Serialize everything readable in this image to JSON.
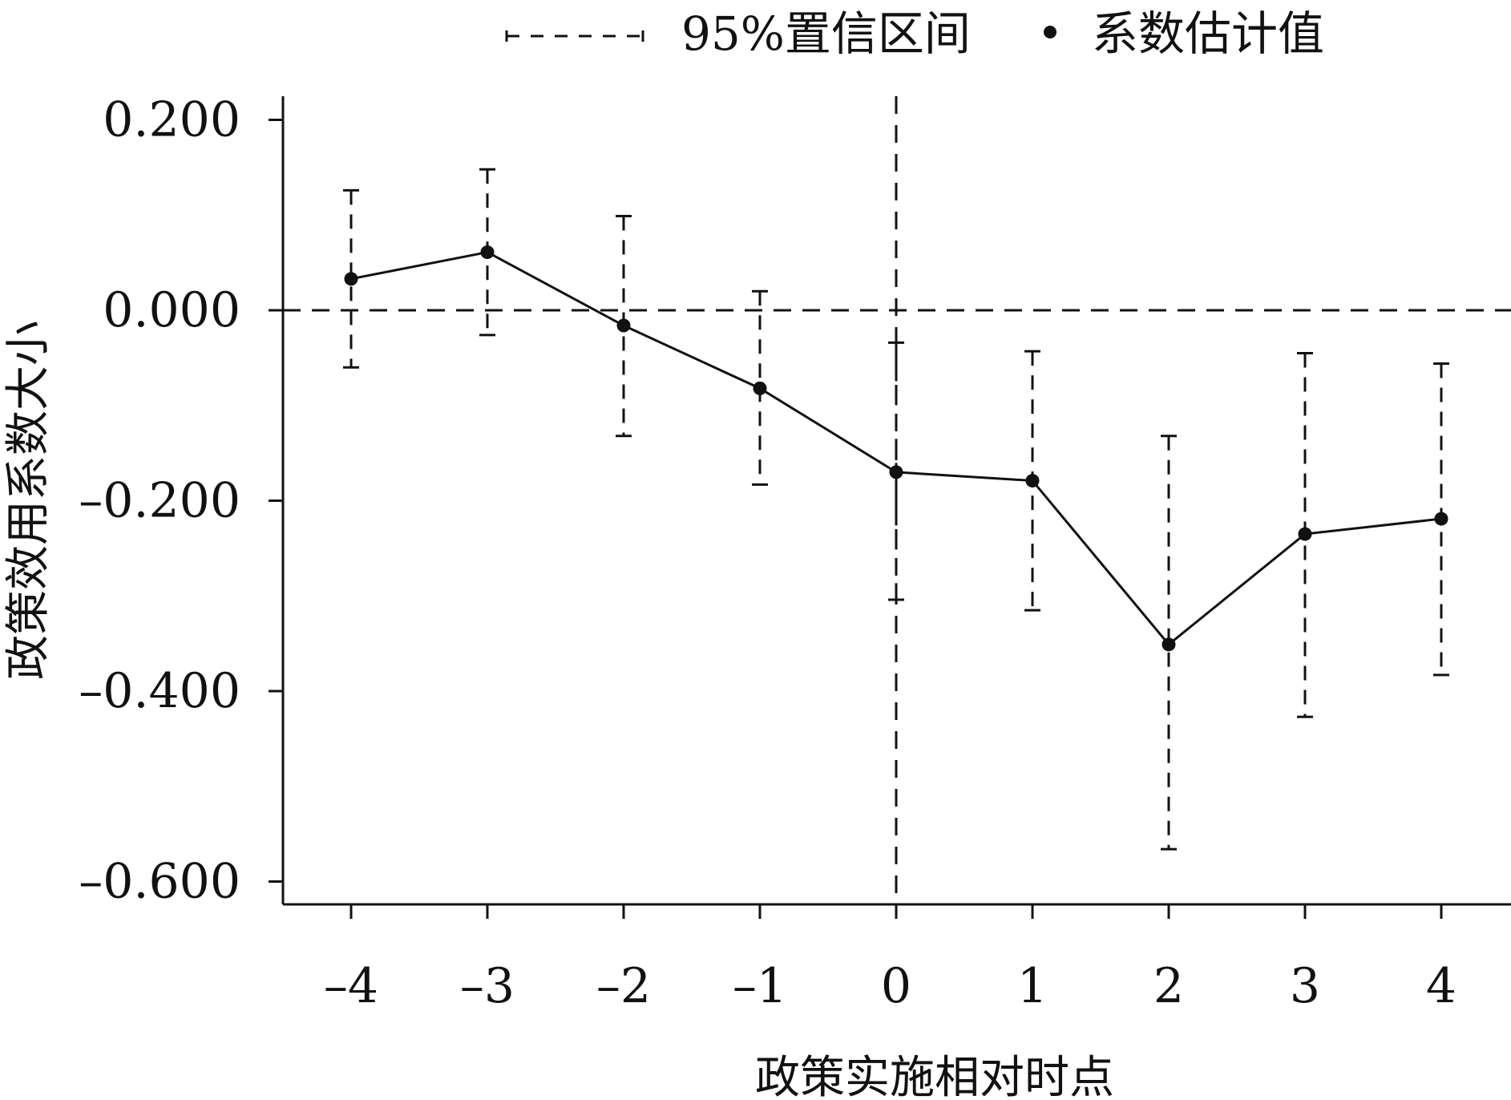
{
  "chart_data": {
    "type": "line",
    "title": "",
    "xlabel": "政策实施相对时点",
    "ylabel": "政策效用系数大小",
    "x": [
      -4,
      -3,
      -2,
      -1,
      0,
      1,
      2,
      3,
      4
    ],
    "x_tick_labels": [
      "–4",
      "–3",
      "–2",
      "–1",
      "0",
      "1",
      "2",
      "3",
      "4"
    ],
    "y_ticks": [
      0.2,
      0.0,
      -0.2,
      -0.4,
      -0.6
    ],
    "y_tick_labels": [
      "0.200",
      "0.000",
      "–0.200",
      "–0.400",
      "–0.600"
    ],
    "ylim": [
      -0.625,
      0.225
    ],
    "xlim": [
      -4.5,
      4.5
    ],
    "series": [
      {
        "name": "系数估计值",
        "values": [
          0.033,
          0.061,
          -0.016,
          -0.082,
          -0.17,
          -0.179,
          -0.351,
          -0.235,
          -0.219
        ]
      }
    ],
    "ci_lower": [
      -0.06,
      -0.026,
      -0.132,
      -0.183,
      -0.304,
      -0.315,
      -0.566,
      -0.427,
      -0.383
    ],
    "ci_upper": [
      0.126,
      0.148,
      0.099,
      0.02,
      -0.034,
      -0.043,
      -0.132,
      -0.045,
      -0.056
    ],
    "reference_lines": {
      "y": 0,
      "x": 0
    },
    "legend": {
      "position": "top",
      "items": [
        {
          "label": "95%置信区间",
          "symbol": "dashed-errorbar"
        },
        {
          "label": "系数估计值",
          "symbol": "dot"
        }
      ]
    },
    "grid": false,
    "colors": {
      "ink": "#111111"
    }
  }
}
